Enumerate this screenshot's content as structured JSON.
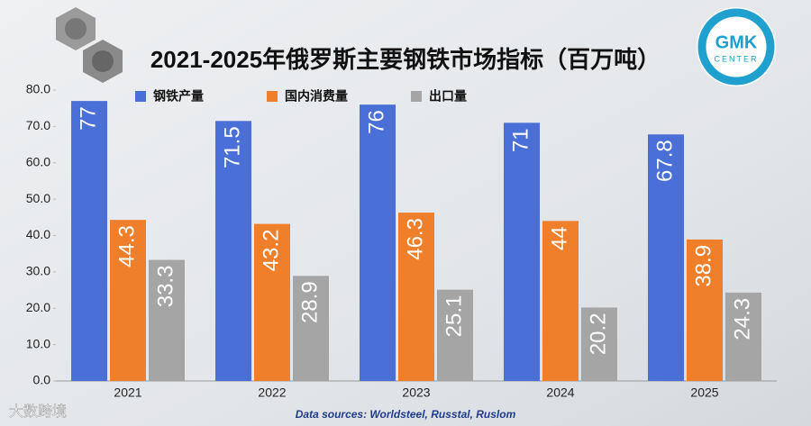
{
  "chart_data": {
    "type": "bar",
    "title": "2021-2025年俄罗斯主要钢铁市场指标（百万吨）",
    "categories": [
      "2021",
      "2022",
      "2023",
      "2024",
      "2025"
    ],
    "series": [
      {
        "name": "钢铁产量",
        "color": "#4a6fd6",
        "values": [
          77,
          71.5,
          76,
          71,
          67.8
        ]
      },
      {
        "name": "国内消费量",
        "color": "#f07f2c",
        "values": [
          44.3,
          43.2,
          46.3,
          44,
          38.9
        ]
      },
      {
        "name": "出口量",
        "color": "#a5a5a5",
        "values": [
          33.3,
          28.9,
          25.1,
          20.2,
          24.3
        ]
      }
    ],
    "ylim": [
      0,
      80
    ],
    "yticks": [
      {
        "value": 0,
        "label": "0.0"
      },
      {
        "value": 10,
        "label": "10.0"
      },
      {
        "value": 20,
        "label": "20.0"
      },
      {
        "value": 30,
        "label": "30.0"
      },
      {
        "value": 40,
        "label": "40.0"
      },
      {
        "value": 50,
        "label": "50.0"
      },
      {
        "value": 60,
        "label": "60.0"
      },
      {
        "value": 70,
        "label": "70.0"
      },
      {
        "value": 80,
        "label": "80.0"
      }
    ],
    "grid": false,
    "legend": "top",
    "source": "Data sources: Worldsteel, Russtal, Ruslom"
  },
  "logo": {
    "name": "GMK",
    "sub": "CENTER"
  },
  "watermark": "大数跨境"
}
